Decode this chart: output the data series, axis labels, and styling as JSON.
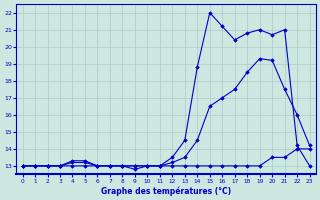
{
  "title": "Graphe des températures (°C)",
  "bg_color": "#cce8e0",
  "grid_color": "#aacccc",
  "line_color": "#0000cc",
  "xlim": [
    -0.5,
    23.5
  ],
  "ylim": [
    12.5,
    22.5
  ],
  "yticks": [
    13,
    14,
    15,
    16,
    17,
    18,
    19,
    20,
    21,
    22
  ],
  "xticks": [
    0,
    1,
    2,
    3,
    4,
    5,
    6,
    7,
    8,
    9,
    10,
    11,
    12,
    13,
    14,
    15,
    16,
    17,
    18,
    19,
    20,
    21,
    22,
    23
  ],
  "series": [
    {
      "x": [
        0,
        1,
        2,
        3,
        4,
        5,
        6,
        7,
        8,
        9,
        10,
        11,
        12,
        13,
        14,
        15,
        16,
        17,
        18,
        19,
        20,
        21,
        22,
        23
      ],
      "y": [
        13,
        13,
        13,
        13,
        13,
        13,
        13,
        13,
        13,
        13,
        13,
        13,
        13,
        13,
        13,
        13,
        13,
        13,
        13,
        13,
        13.5,
        13.5,
        14,
        14
      ]
    },
    {
      "x": [
        0,
        1,
        2,
        3,
        4,
        5,
        6,
        7,
        8,
        9,
        10,
        11,
        12,
        13,
        14,
        15,
        16,
        17,
        18,
        19,
        20,
        21,
        22,
        23
      ],
      "y": [
        13,
        13,
        13,
        13,
        13.2,
        13.2,
        13,
        13,
        13,
        13,
        13,
        13,
        13.2,
        13.5,
        14.5,
        16.5,
        17.0,
        17.5,
        18.5,
        19.3,
        19.2,
        17.5,
        16.0,
        14.2
      ]
    },
    {
      "x": [
        0,
        1,
        2,
        3,
        4,
        5,
        6,
        7,
        8,
        9,
        10,
        11,
        12,
        13,
        14,
        15,
        16,
        17,
        18,
        19,
        20,
        21,
        22,
        23
      ],
      "y": [
        13,
        13,
        13,
        13,
        13.3,
        13.3,
        13,
        13,
        13,
        12.8,
        13.0,
        13.0,
        13.5,
        14.5,
        18.8,
        22.0,
        21.2,
        20.4,
        20.8,
        21.0,
        20.7,
        21.0,
        14.2,
        13.0
      ]
    }
  ]
}
